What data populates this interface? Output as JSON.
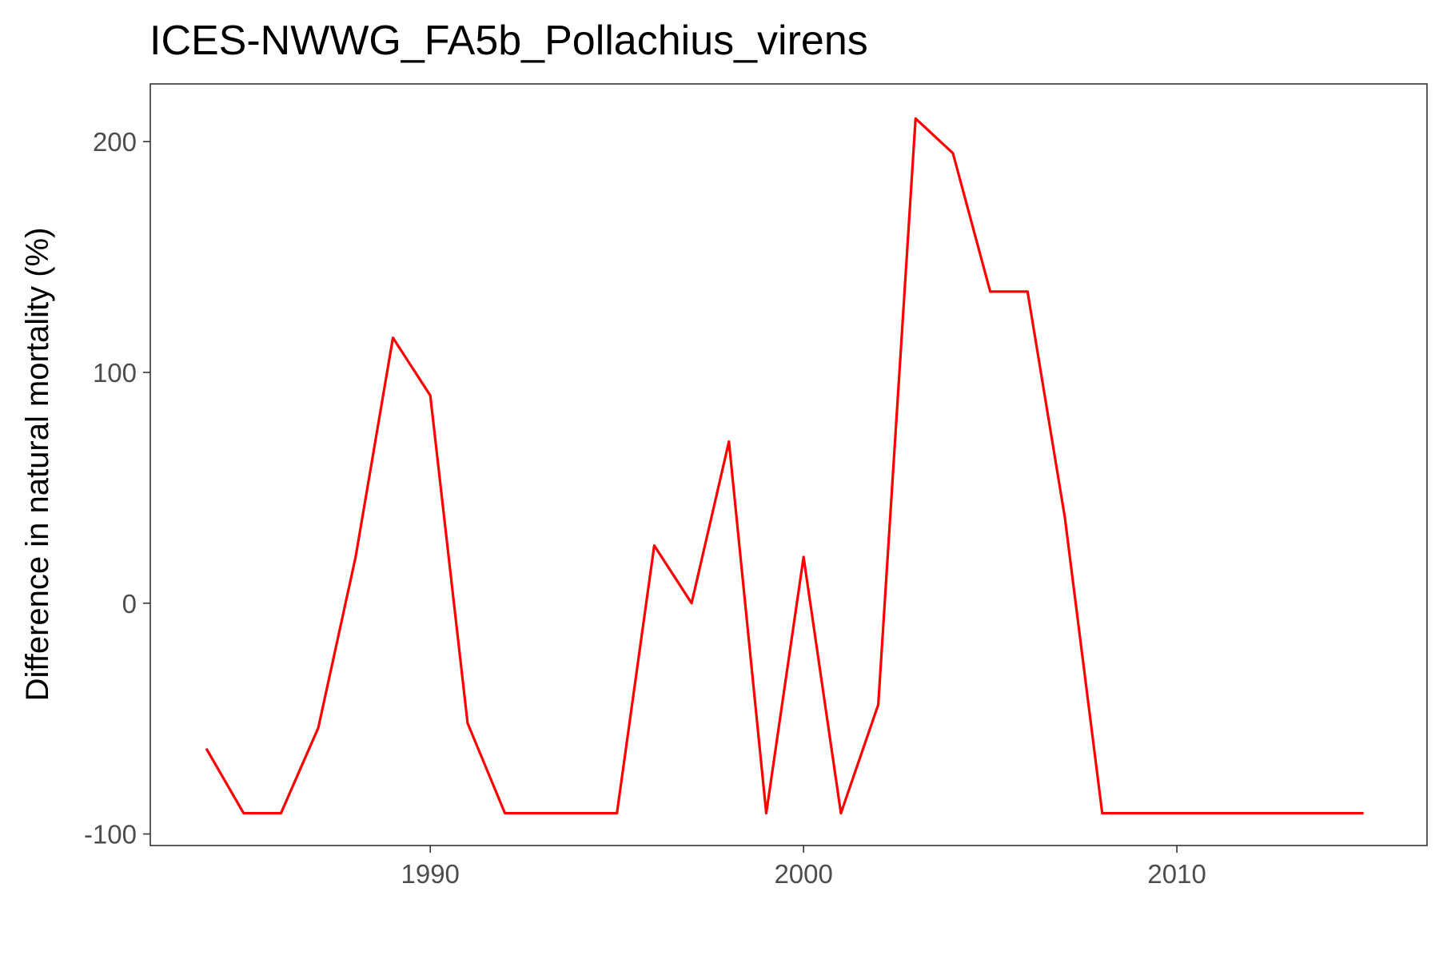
{
  "chart_data": {
    "type": "line",
    "title": "ICES-NWWG_FA5b_Pollachius_virens",
    "xlabel": "",
    "ylabel": "Difference in natural mortality (%)",
    "xlim": [
      1982.5,
      2016.7
    ],
    "ylim": [
      -105,
      225
    ],
    "x_ticks": [
      1990,
      2000,
      2010
    ],
    "y_ticks": [
      -100,
      0,
      100,
      200
    ],
    "x_tick_labels": [
      "1990",
      "2000",
      "2010"
    ],
    "y_tick_labels": [
      "-100",
      "0",
      "100",
      "200"
    ],
    "grid": false,
    "legend": "none",
    "series": [
      {
        "color": "#ff0000",
        "x": [
          1984,
          1985,
          1986,
          1987,
          1988,
          1989,
          1990,
          1991,
          1992,
          1993,
          1994,
          1995,
          1996,
          1997,
          1998,
          1999,
          2000,
          2001,
          2002,
          2003,
          2004,
          2005,
          2006,
          2007,
          2008,
          2009,
          2010,
          2011,
          2012,
          2013,
          2014,
          2015
        ],
        "y": [
          -63,
          -91,
          -91,
          -54,
          20,
          115,
          90,
          -52,
          -91,
          -91,
          -91,
          -91,
          25,
          0,
          70,
          -91,
          20,
          -91,
          -44,
          210,
          195,
          135,
          135,
          37,
          -91,
          -91,
          -91,
          -91,
          -91,
          -91,
          -91,
          -91
        ]
      }
    ]
  }
}
